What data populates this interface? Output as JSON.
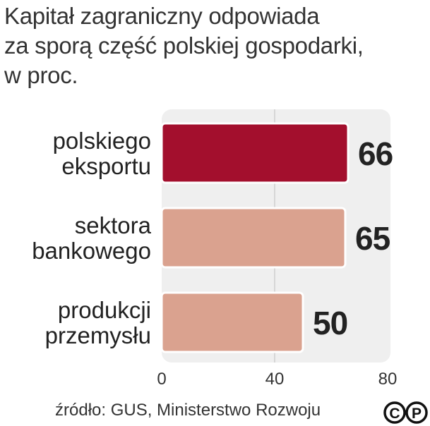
{
  "title_lines": [
    "Kapitał zagraniczny odpowiada",
    "za sporą część polskiej gospodarki,",
    "w proc."
  ],
  "source": "źródło: GUS, Ministerstwo Rozwoju",
  "logo": {
    "icon": "copyright-press-icon",
    "letters": [
      "C",
      "P"
    ]
  },
  "colors": {
    "highlight_bar": "#a30f2d",
    "bar": "#daa28f",
    "plot_bg": "#efefef",
    "grid": "#bdbdbd",
    "text": "#222222"
  },
  "chart_data": {
    "type": "bar",
    "orientation": "horizontal",
    "categories": [
      [
        "polskiego",
        "eksportu"
      ],
      [
        "sektora",
        "bankowego"
      ],
      [
        "produkcji",
        "przemysłu"
      ]
    ],
    "values": [
      66,
      65,
      50
    ],
    "highlight_index": 0,
    "xlim": [
      0,
      80
    ],
    "xticks": [
      "0",
      "40",
      "80"
    ],
    "grid": true,
    "title": "Kapitał zagraniczny odpowiada za sporą część polskiej gospodarki, w proc.",
    "xlabel": "",
    "ylabel": ""
  }
}
